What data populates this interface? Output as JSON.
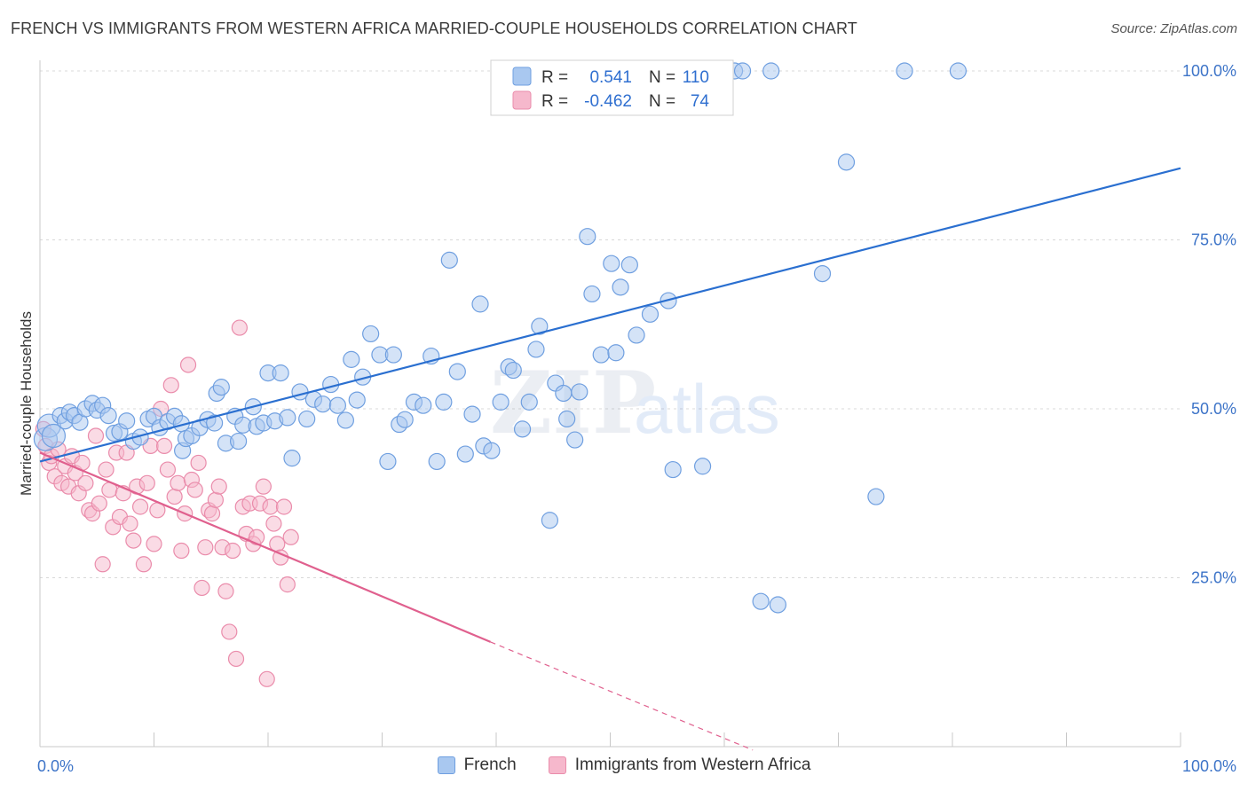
{
  "title": "FRENCH VS IMMIGRANTS FROM WESTERN AFRICA MARRIED-COUPLE HOUSEHOLDS CORRELATION CHART",
  "source": "Source: ZipAtlas.com",
  "watermark": {
    "zip": "ZIP",
    "atlas": "atlas"
  },
  "legend_box": {
    "rows": [
      {
        "r_label": "R =",
        "r_value": "0.541",
        "n_label": "N =",
        "n_value": "110"
      },
      {
        "r_label": "R =",
        "r_value": "-0.462",
        "n_label": "N =",
        "n_value": "74"
      }
    ]
  },
  "bottom_legend": {
    "french": "French",
    "immigrants": "Immigrants from Western Africa"
  },
  "colors": {
    "french_fill": "#a9c8f0",
    "french_stroke": "#6f9fe0",
    "french_line": "#2a6fd0",
    "imm_fill": "#f6b8cc",
    "imm_stroke": "#ea8cab",
    "imm_line": "#e0608e",
    "grid": "#d8d8d8",
    "axis_text": "#3d74c8"
  },
  "chart_data": {
    "type": "scatter",
    "title": "FRENCH VS IMMIGRANTS FROM WESTERN AFRICA MARRIED-COUPLE HOUSEHOLDS CORRELATION CHART",
    "xlabel": "",
    "ylabel": "Married-couple Households",
    "xlim": [
      0,
      100
    ],
    "ylim": [
      0,
      102
    ],
    "x_tick_labels": [
      "0.0%",
      "100.0%"
    ],
    "y_tick_labels": [
      "25.0%",
      "50.0%",
      "75.0%",
      "100.0%"
    ],
    "y_ticks": [
      25,
      50,
      75,
      100
    ],
    "grid": true,
    "legend_position": "top-center",
    "series": [
      {
        "name": "French",
        "R": 0.541,
        "N": 110,
        "trend": {
          "x": [
            0,
            100
          ],
          "y": [
            42.2,
            85.6
          ],
          "style": "solid"
        },
        "points": [
          [
            0.5,
            45.5
          ],
          [
            0.8,
            47.5
          ],
          [
            1.2,
            46
          ],
          [
            1.8,
            49
          ],
          [
            2.2,
            48.2
          ],
          [
            2.6,
            49.5
          ],
          [
            3,
            49
          ],
          [
            3.5,
            48
          ],
          [
            4,
            50
          ],
          [
            4.6,
            50.8
          ],
          [
            5,
            49.8
          ],
          [
            5.5,
            50.5
          ],
          [
            6,
            49
          ],
          [
            6.5,
            46.4
          ],
          [
            7,
            46.6
          ],
          [
            7.6,
            48.2
          ],
          [
            8.2,
            45.2
          ],
          [
            8.8,
            45.8
          ],
          [
            9.5,
            48.5
          ],
          [
            10,
            48.9
          ],
          [
            10.5,
            47.2
          ],
          [
            11.2,
            48.1
          ],
          [
            11.8,
            48.9
          ],
          [
            12.4,
            47.8
          ],
          [
            12.5,
            43.8
          ],
          [
            12.8,
            45.6
          ],
          [
            13.3,
            46
          ],
          [
            14,
            47.2
          ],
          [
            14.7,
            48.4
          ],
          [
            15.3,
            47.9
          ],
          [
            15.5,
            52.3
          ],
          [
            15.9,
            53.2
          ],
          [
            16.3,
            44.9
          ],
          [
            17.1,
            48.9
          ],
          [
            17.4,
            45.2
          ],
          [
            17.8,
            47.6
          ],
          [
            18.7,
            50.3
          ],
          [
            19,
            47.4
          ],
          [
            19.6,
            47.9
          ],
          [
            20,
            55.3
          ],
          [
            20.6,
            48.2
          ],
          [
            21.1,
            55.3
          ],
          [
            21.7,
            48.7
          ],
          [
            22.1,
            42.7
          ],
          [
            22.8,
            52.5
          ],
          [
            23.4,
            48.5
          ],
          [
            24,
            51.4
          ],
          [
            24.8,
            50.7
          ],
          [
            25.5,
            53.6
          ],
          [
            26.1,
            50.5
          ],
          [
            26.8,
            48.3
          ],
          [
            27.3,
            57.3
          ],
          [
            27.8,
            51.3
          ],
          [
            28.3,
            54.7
          ],
          [
            29,
            61.1
          ],
          [
            29.8,
            58
          ],
          [
            30.5,
            42.2
          ],
          [
            31,
            58
          ],
          [
            31.5,
            47.7
          ],
          [
            32,
            48.4
          ],
          [
            32.8,
            51
          ],
          [
            33.6,
            50.5
          ],
          [
            34.3,
            57.8
          ],
          [
            34.8,
            42.2
          ],
          [
            35.4,
            51
          ],
          [
            35.9,
            72
          ],
          [
            36.6,
            55.5
          ],
          [
            37.3,
            43.3
          ],
          [
            37.9,
            49.2
          ],
          [
            38.6,
            65.5
          ],
          [
            38.9,
            44.5
          ],
          [
            39.6,
            43.8
          ],
          [
            40.4,
            51
          ],
          [
            41.1,
            56.2
          ],
          [
            41.5,
            55.7
          ],
          [
            42.3,
            47
          ],
          [
            42.9,
            51
          ],
          [
            43.5,
            58.8
          ],
          [
            43.8,
            62.2
          ],
          [
            44.7,
            33.5
          ],
          [
            45.2,
            53.8
          ],
          [
            45.9,
            52.3
          ],
          [
            46.2,
            48.5
          ],
          [
            46.9,
            45.4
          ],
          [
            47.3,
            52.5
          ],
          [
            48,
            75.5
          ],
          [
            48.4,
            67
          ],
          [
            49.2,
            58
          ],
          [
            50.1,
            71.5
          ],
          [
            50.5,
            58.3
          ],
          [
            50.9,
            68
          ],
          [
            51.7,
            71.3
          ],
          [
            52.3,
            60.9
          ],
          [
            53.5,
            64
          ],
          [
            55.1,
            66
          ],
          [
            55.5,
            41
          ],
          [
            56.9,
            100
          ],
          [
            58.1,
            41.5
          ],
          [
            58.9,
            100
          ],
          [
            60,
            100
          ],
          [
            60.9,
            100
          ],
          [
            61.6,
            100
          ],
          [
            63.2,
            21.5
          ],
          [
            64.1,
            100
          ],
          [
            64.7,
            21
          ],
          [
            68.6,
            70
          ],
          [
            70.7,
            86.5
          ],
          [
            73.3,
            37
          ],
          [
            75.8,
            100
          ],
          [
            80.5,
            100
          ]
        ]
      },
      {
        "name": "Immigrants from Western Africa",
        "R": -0.462,
        "N": 74,
        "trend": {
          "x": [
            0,
            39.5
          ],
          "y": [
            43.5,
            15.5
          ],
          "style": "solid",
          "dashed_extension_to": [
            62.5,
            -0.5
          ]
        },
        "points": [
          [
            0.3,
            47
          ],
          [
            0.5,
            44.5
          ],
          [
            0.8,
            42
          ],
          [
            1,
            43
          ],
          [
            1.3,
            40
          ],
          [
            1.6,
            44
          ],
          [
            1.9,
            39
          ],
          [
            2.2,
            41.5
          ],
          [
            2.5,
            38.5
          ],
          [
            2.8,
            43
          ],
          [
            3.1,
            40.5
          ],
          [
            3.4,
            37.5
          ],
          [
            3.7,
            42
          ],
          [
            4,
            39
          ],
          [
            4.3,
            35
          ],
          [
            4.6,
            34.5
          ],
          [
            4.9,
            46
          ],
          [
            5.2,
            36
          ],
          [
            5.5,
            27
          ],
          [
            5.8,
            41
          ],
          [
            6.1,
            38
          ],
          [
            6.4,
            32.5
          ],
          [
            6.7,
            43.5
          ],
          [
            7,
            34
          ],
          [
            7.3,
            37.5
          ],
          [
            7.6,
            43.5
          ],
          [
            7.9,
            33
          ],
          [
            8.2,
            30.5
          ],
          [
            8.5,
            38.5
          ],
          [
            8.8,
            35.5
          ],
          [
            9.1,
            27
          ],
          [
            9.4,
            39
          ],
          [
            9.7,
            44.5
          ],
          [
            10,
            30
          ],
          [
            10.3,
            35
          ],
          [
            10.6,
            50
          ],
          [
            10.9,
            44.5
          ],
          [
            11.2,
            41
          ],
          [
            11.5,
            53.5
          ],
          [
            11.8,
            37
          ],
          [
            12.1,
            39
          ],
          [
            12.4,
            29
          ],
          [
            12.7,
            34.5
          ],
          [
            13,
            56.5
          ],
          [
            13.3,
            39.5
          ],
          [
            13.6,
            38
          ],
          [
            13.9,
            42
          ],
          [
            14.2,
            23.5
          ],
          [
            14.5,
            29.5
          ],
          [
            14.8,
            35
          ],
          [
            15.1,
            34.5
          ],
          [
            15.4,
            36.5
          ],
          [
            15.7,
            38.5
          ],
          [
            16,
            29.5
          ],
          [
            16.3,
            23
          ],
          [
            16.6,
            17
          ],
          [
            16.9,
            29
          ],
          [
            17.2,
            13
          ],
          [
            17.5,
            62
          ],
          [
            17.8,
            35.5
          ],
          [
            18.1,
            31.5
          ],
          [
            18.4,
            36
          ],
          [
            18.7,
            30
          ],
          [
            19,
            31
          ],
          [
            19.3,
            36
          ],
          [
            19.6,
            38.5
          ],
          [
            19.9,
            10
          ],
          [
            20.2,
            35.5
          ],
          [
            20.5,
            33
          ],
          [
            20.8,
            30
          ],
          [
            21.1,
            28
          ],
          [
            21.4,
            35.5
          ],
          [
            21.7,
            24
          ],
          [
            22,
            31
          ]
        ]
      }
    ]
  }
}
